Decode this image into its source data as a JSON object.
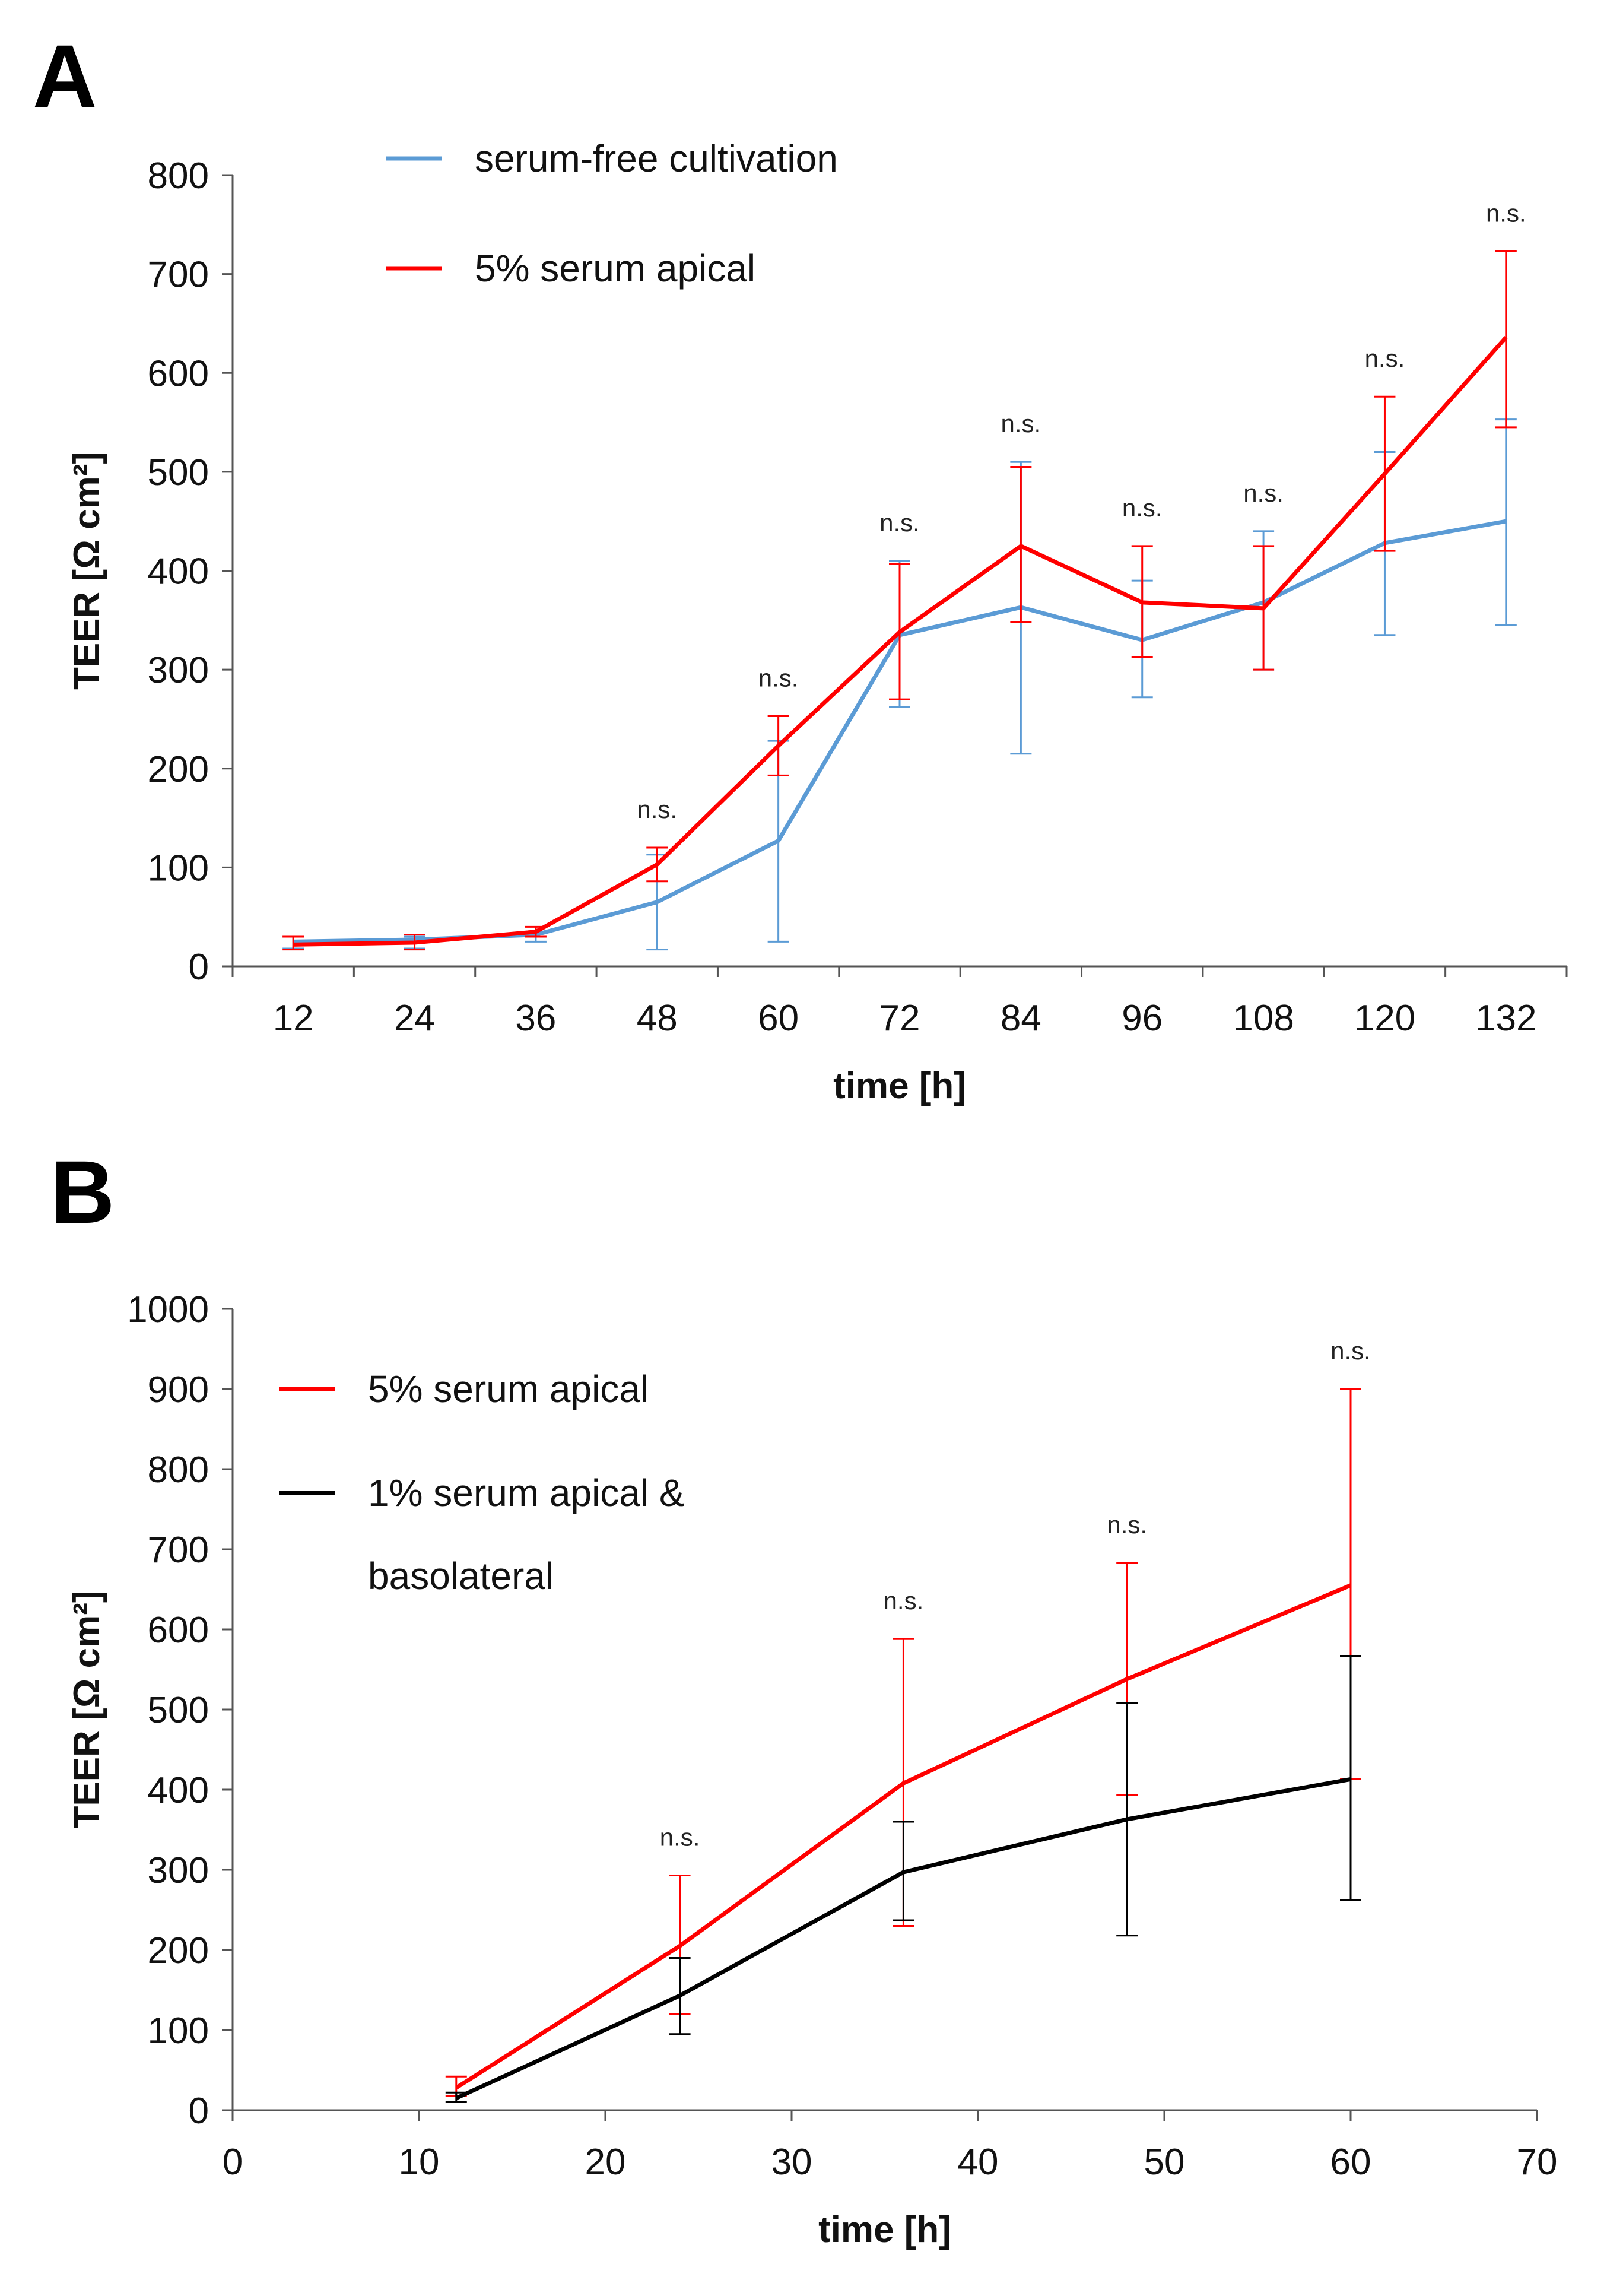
{
  "chart_data": [
    {
      "panel": "A",
      "type": "line",
      "xlabel": "time [h]",
      "ylabel": "TEER [Ω cm²]",
      "categories": [
        "12",
        "24",
        "36",
        "48",
        "60",
        "72",
        "84",
        "96",
        "108",
        "120",
        "132"
      ],
      "yticks": [
        "0",
        "100",
        "200",
        "300",
        "400",
        "500",
        "600",
        "700",
        "800"
      ],
      "ylim": [
        0,
        800
      ],
      "grid": false,
      "legend_position": "top-left",
      "series": [
        {
          "name": "serum-free cultivation",
          "color": "#5b9bd5",
          "values": [
            25,
            27,
            32,
            65,
            127,
            335,
            363,
            330,
            368,
            428,
            450
          ],
          "err_low": [
            18,
            18,
            25,
            17,
            25,
            262,
            215,
            272,
            300,
            335,
            345
          ],
          "err_high": [
            30,
            30,
            35,
            113,
            228,
            410,
            510,
            390,
            440,
            520,
            553
          ]
        },
        {
          "name": "5% serum apical",
          "color": "#ff0000",
          "values": [
            22,
            24,
            35,
            103,
            223,
            338,
            425,
            368,
            362,
            498,
            636
          ],
          "err_low": [
            17,
            17,
            30,
            86,
            193,
            270,
            348,
            313,
            300,
            420,
            545
          ],
          "err_high": [
            30,
            32,
            40,
            120,
            253,
            407,
            505,
            425,
            425,
            576,
            723
          ]
        }
      ],
      "annotations": [
        "",
        "",
        "",
        "n.s.",
        "n.s.",
        "n.s.",
        "n.s.",
        "n.s.",
        "n.s.",
        "n.s.",
        "n.s."
      ]
    },
    {
      "panel": "B",
      "type": "line",
      "xlabel": "time [h]",
      "ylabel": "TEER [Ω cm²]",
      "xticks": [
        "0",
        "10",
        "20",
        "30",
        "40",
        "50",
        "60",
        "70"
      ],
      "yticks": [
        "0",
        "100",
        "200",
        "300",
        "400",
        "500",
        "600",
        "700",
        "800",
        "900",
        "1000"
      ],
      "xlim": [
        0,
        70
      ],
      "ylim": [
        0,
        1000
      ],
      "grid": false,
      "legend_position": "top-left",
      "x": [
        12,
        24,
        36,
        48,
        60
      ],
      "series": [
        {
          "name": "5% serum apical",
          "color": "#ff0000",
          "values": [
            28,
            205,
            408,
            538,
            655
          ],
          "err_low": [
            18,
            120,
            230,
            393,
            413
          ],
          "err_high": [
            42,
            293,
            588,
            683,
            900
          ]
        },
        {
          "name": "1% serum apical & basolateral",
          "color": "#000000",
          "values": [
            15,
            143,
            297,
            363,
            413
          ],
          "err_low": [
            10,
            95,
            237,
            218,
            262
          ],
          "err_high": [
            22,
            190,
            360,
            508,
            567
          ]
        }
      ],
      "annotations": [
        "",
        "n.s.",
        "n.s.",
        "n.s.",
        "n.s."
      ]
    }
  ],
  "legend_lines": {
    "A": [
      [
        "serum-free cultivation"
      ],
      [
        "5% serum apical"
      ]
    ],
    "B": [
      [
        "5% serum apical"
      ],
      [
        "1% serum apical &",
        "basolateral"
      ]
    ]
  }
}
